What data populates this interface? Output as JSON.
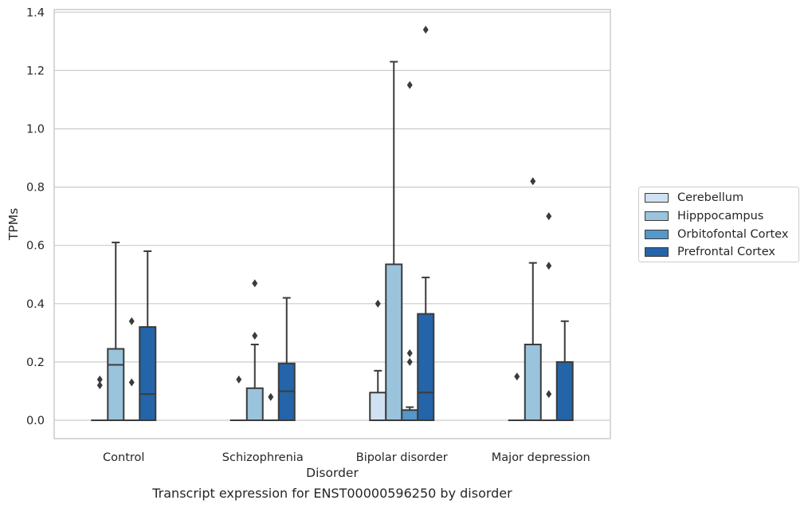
{
  "caption": "Transcript expression for ENST00000596250 by disorder",
  "chart_data": {
    "type": "box",
    "xlabel": "Disorder",
    "ylabel": "TPMs",
    "ylim": [
      -0.063,
      1.41
    ],
    "yticks": [
      "0.0",
      "0.2",
      "0.4",
      "0.6",
      "0.8",
      "1.0",
      "1.2",
      "1.4"
    ],
    "categories": [
      "Control",
      "Schizophrenia",
      "Bipolar disorder",
      "Major depression"
    ],
    "grid": "horizontal",
    "legend_position": "right",
    "series": [
      {
        "name": "Cerebellum",
        "color": "#d0e1f2",
        "boxes": [
          {
            "q1": 0,
            "median": 0,
            "q3": 0,
            "whisker_low": 0,
            "whisker_high": 0,
            "outliers": [
              0.12,
              0.14
            ]
          },
          {
            "q1": 0,
            "median": 0,
            "q3": 0,
            "whisker_low": 0,
            "whisker_high": 0,
            "outliers": [
              0.14
            ]
          },
          {
            "q1": 0,
            "median": 0,
            "q3": 0.095,
            "whisker_low": 0,
            "whisker_high": 0.17,
            "outliers": [
              0.4
            ]
          },
          {
            "q1": 0,
            "median": 0,
            "q3": 0,
            "whisker_low": 0,
            "whisker_high": 0,
            "outliers": [
              0.15
            ]
          }
        ]
      },
      {
        "name": "Hipppocampus",
        "color": "#9ac3dc",
        "boxes": [
          {
            "q1": 0,
            "median": 0.19,
            "q3": 0.245,
            "whisker_low": 0,
            "whisker_high": 0.61,
            "outliers": []
          },
          {
            "q1": 0,
            "median": 0,
            "q3": 0.11,
            "whisker_low": 0,
            "whisker_high": 0.26,
            "outliers": [
              0.29,
              0.47
            ]
          },
          {
            "q1": 0,
            "median": 0,
            "q3": 0.535,
            "whisker_low": 0,
            "whisker_high": 1.23,
            "outliers": []
          },
          {
            "q1": 0,
            "median": 0,
            "q3": 0.26,
            "whisker_low": 0,
            "whisker_high": 0.54,
            "outliers": [
              0.82
            ]
          }
        ]
      },
      {
        "name": "Orbitofontal Cortex",
        "color": "#5497c8",
        "boxes": [
          {
            "q1": 0,
            "median": 0,
            "q3": 0,
            "whisker_low": 0,
            "whisker_high": 0,
            "outliers": [
              0.13,
              0.34
            ]
          },
          {
            "q1": 0,
            "median": 0,
            "q3": 0,
            "whisker_low": 0,
            "whisker_high": 0,
            "outliers": [
              0.08
            ]
          },
          {
            "q1": 0,
            "median": 0,
            "q3": 0.035,
            "whisker_low": 0,
            "whisker_high": 0.045,
            "outliers": [
              0.2,
              0.23,
              1.15
            ]
          },
          {
            "q1": 0,
            "median": 0,
            "q3": 0,
            "whisker_low": 0,
            "whisker_high": 0,
            "outliers": [
              0.09,
              0.53,
              0.7
            ]
          }
        ]
      },
      {
        "name": "Prefrontal Cortex",
        "color": "#2464a8",
        "boxes": [
          {
            "q1": 0,
            "median": 0.09,
            "q3": 0.32,
            "whisker_low": 0,
            "whisker_high": 0.58,
            "outliers": []
          },
          {
            "q1": 0,
            "median": 0.1,
            "q3": 0.195,
            "whisker_low": 0,
            "whisker_high": 0.42,
            "outliers": []
          },
          {
            "q1": 0,
            "median": 0.095,
            "q3": 0.365,
            "whisker_low": 0,
            "whisker_high": 0.49,
            "outliers": [
              1.34
            ]
          },
          {
            "q1": 0,
            "median": 0,
            "q3": 0.2,
            "whisker_low": 0,
            "whisker_high": 0.34,
            "outliers": []
          }
        ]
      }
    ]
  }
}
